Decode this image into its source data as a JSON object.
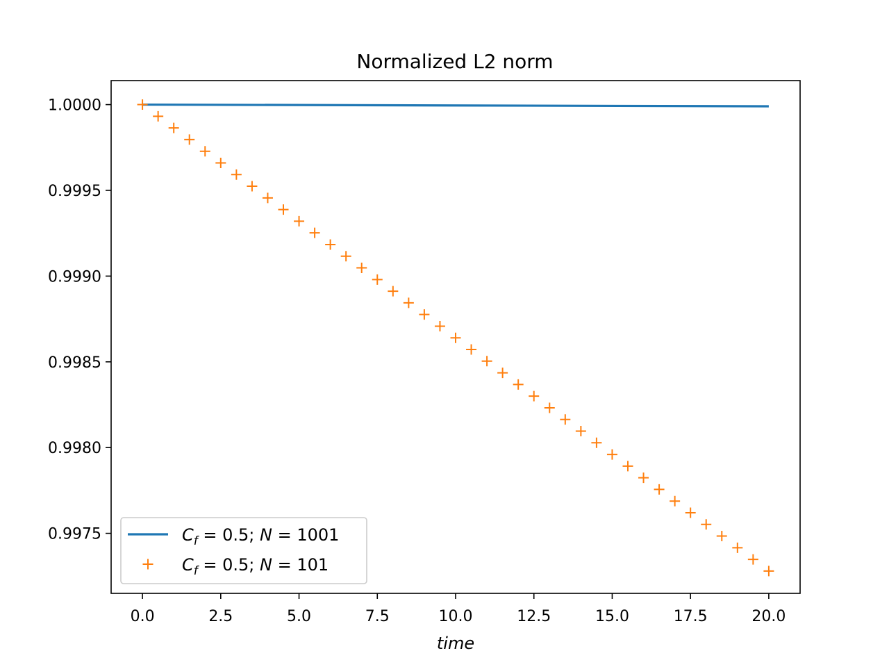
{
  "chart_data": {
    "type": "line",
    "title": "Normalized L2 norm",
    "xlabel": "time",
    "ylabel": "",
    "xlim": [
      -1.0,
      21.0
    ],
    "ylim": [
      0.99715,
      1.00014
    ],
    "xticks": [
      0.0,
      2.5,
      5.0,
      7.5,
      10.0,
      12.5,
      15.0,
      17.5,
      20.0
    ],
    "xtick_labels": [
      "0.0",
      "2.5",
      "5.0",
      "7.5",
      "10.0",
      "12.5",
      "15.0",
      "17.5",
      "20.0"
    ],
    "yticks": [
      0.9975,
      0.998,
      0.9985,
      0.999,
      0.9995,
      1.0
    ],
    "ytick_labels": [
      "0.9975",
      "0.9980",
      "0.9985",
      "0.9990",
      "0.9995",
      "1.0000"
    ],
    "grid": false,
    "legend_position": "lower-left",
    "series": [
      {
        "name": "C_f = 0.5;  N = 1001",
        "legend": {
          "symbol": "C",
          "sub": "f",
          "eq": " = 0.5;  ",
          "var": "N",
          "val": " = 1001"
        },
        "style": "line",
        "color": "#1f77b4",
        "x": [
          0,
          20
        ],
        "y": [
          1.0,
          0.99999
        ]
      },
      {
        "name": "C_f = 0.5;  N = 101",
        "legend": {
          "symbol": "C",
          "sub": "f",
          "eq": " = 0.5;  ",
          "var": "N",
          "val": " = 101"
        },
        "style": "marker-plus",
        "color": "#ff7f0e",
        "x": [
          0,
          0.5,
          1,
          1.5,
          2,
          2.5,
          3,
          3.5,
          4,
          4.5,
          5,
          5.5,
          6,
          6.5,
          7,
          7.5,
          8,
          8.5,
          9,
          9.5,
          10,
          10.5,
          11,
          11.5,
          12,
          12.5,
          13,
          13.5,
          14,
          14.5,
          15,
          15.5,
          16,
          16.5,
          17,
          17.5,
          18,
          18.5,
          19,
          19.5,
          20
        ],
        "y": [
          1.0,
          0.999932,
          0.999864,
          0.999796,
          0.999728,
          0.99966,
          0.999592,
          0.999524,
          0.999456,
          0.999388,
          0.99932,
          0.999252,
          0.999184,
          0.999116,
          0.999048,
          0.99898,
          0.998912,
          0.998844,
          0.998776,
          0.998708,
          0.99864,
          0.998572,
          0.998504,
          0.998436,
          0.998368,
          0.9983,
          0.998232,
          0.998164,
          0.998096,
          0.998028,
          0.99796,
          0.997892,
          0.997824,
          0.997756,
          0.997688,
          0.99762,
          0.997552,
          0.997484,
          0.997416,
          0.997348,
          0.99728
        ]
      }
    ]
  }
}
